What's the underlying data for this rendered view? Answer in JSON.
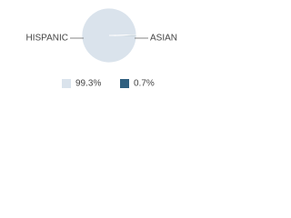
{
  "chart_data": {
    "type": "pie",
    "categories": [
      "HISPANIC",
      "ASIAN"
    ],
    "values": [
      99.3,
      0.7
    ],
    "value_labels": [
      "99.3%",
      "0.7%"
    ],
    "colors": [
      "#dae3ec",
      "#2f5f7f"
    ]
  }
}
